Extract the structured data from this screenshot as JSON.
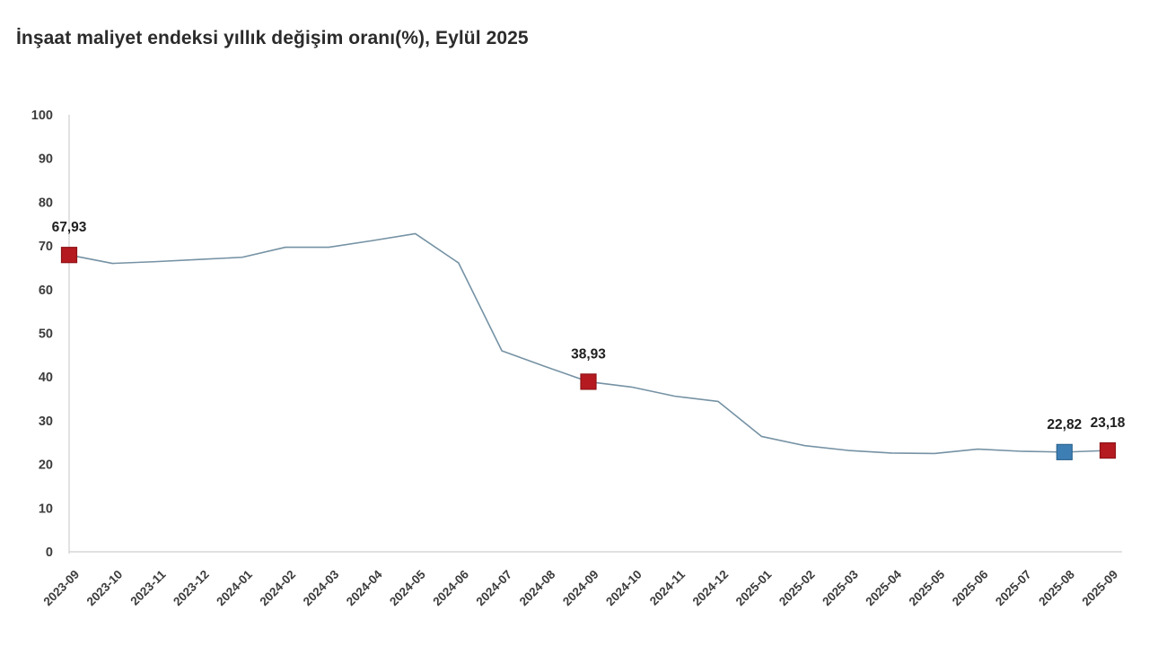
{
  "title": "İnşaat maliyet endeksi yıllık değişim oranı(%), Eylül 2025",
  "colors": {
    "line": "#7592a4",
    "axis": "#d6d6d6",
    "tick_text": "#3c3c3c",
    "point_label_text": "#1f1f1f",
    "marker_red": "#b51a20",
    "marker_red_border": "#8e1418",
    "marker_blue": "#3d7fb5",
    "marker_blue_border": "#2f6791"
  },
  "chart_data": {
    "type": "line",
    "title": "İnşaat maliyet endeksi yıllık değişim oranı(%), Eylül 2025",
    "xlabel": "",
    "ylabel": "",
    "ylim": [
      0,
      100
    ],
    "y_ticks": [
      0,
      10,
      20,
      30,
      40,
      50,
      60,
      70,
      80,
      90,
      100
    ],
    "grid": false,
    "legend": "none",
    "x": [
      "2023-09",
      "2023-10",
      "2023-11",
      "2023-12",
      "2024-01",
      "2024-02",
      "2024-03",
      "2024-04",
      "2024-05",
      "2024-06",
      "2024-07",
      "2024-08",
      "2024-09",
      "2024-10",
      "2024-11",
      "2024-12",
      "2025-01",
      "2025-02",
      "2025-03",
      "2025-04",
      "2025-05",
      "2025-06",
      "2025-07",
      "2025-08",
      "2025-09"
    ],
    "values": [
      67.93,
      66.0,
      66.4,
      66.9,
      67.4,
      69.7,
      69.7,
      71.2,
      72.8,
      66.1,
      46.0,
      42.4,
      38.93,
      37.7,
      35.6,
      34.4,
      26.4,
      24.3,
      23.2,
      22.6,
      22.5,
      23.5,
      23.0,
      22.82,
      23.18
    ],
    "highlighted_points": [
      {
        "x": "2023-09",
        "value": 67.93,
        "label": "67,93",
        "marker": "red"
      },
      {
        "x": "2024-09",
        "value": 38.93,
        "label": "38,93",
        "marker": "red"
      },
      {
        "x": "2025-08",
        "value": 22.82,
        "label": "22,82",
        "marker": "blue"
      },
      {
        "x": "2025-09",
        "value": 23.18,
        "label": "23,18",
        "marker": "red"
      }
    ]
  }
}
